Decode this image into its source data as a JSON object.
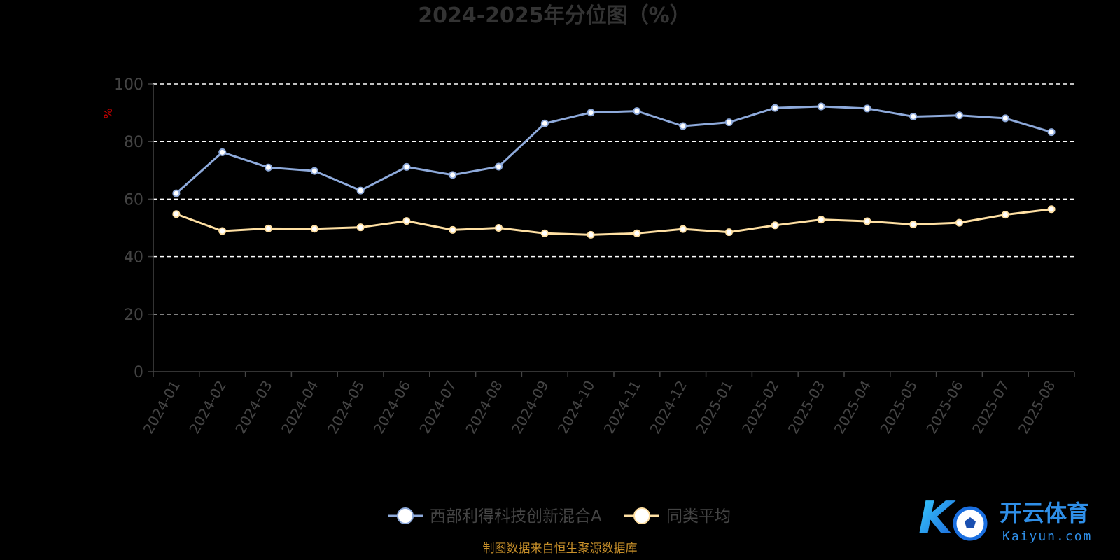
{
  "chart_data": {
    "type": "line",
    "title": "2024-2025年分位图（%）",
    "ylabel": "%",
    "ylim": [
      0,
      100
    ],
    "yticks": [
      "0",
      "20",
      "40",
      "60",
      "80",
      "100"
    ],
    "categories": [
      "2024-01",
      "2024-02",
      "2024-03",
      "2024-04",
      "2024-05",
      "2024-06",
      "2024-07",
      "2024-08",
      "2024-09",
      "2024-10",
      "2024-11",
      "2024-12",
      "2025-01",
      "2025-02",
      "2025-03",
      "2025-04",
      "2025-05",
      "2025-06",
      "2025-07",
      "2025-08"
    ],
    "series": [
      {
        "name": "西部利得科技创新混合A",
        "color": "#8eaadb",
        "values": [
          62,
          76.3,
          71,
          69.8,
          63,
          71.2,
          68.4,
          71.3,
          86.3,
          90.1,
          90.6,
          85.4,
          86.7,
          91.7,
          92.2,
          91.5,
          88.7,
          89.1,
          88.1,
          83.3
        ]
      },
      {
        "name": "同类平均",
        "color": "#ffe0a3",
        "values": [
          54.8,
          48.9,
          49.8,
          49.7,
          50.2,
          52.4,
          49.3,
          50,
          48.1,
          47.6,
          48.1,
          49.6,
          48.5,
          50.9,
          52.9,
          52.3,
          51.2,
          51.8,
          54.6,
          56.5
        ]
      }
    ],
    "grid": true,
    "legend_position": "bottom-center"
  },
  "source": "制图数据来自恒生聚源数据库",
  "watermark": {
    "mark": "K",
    "name_cn": "开云体育",
    "name_en": "Kaiyun.com"
  }
}
